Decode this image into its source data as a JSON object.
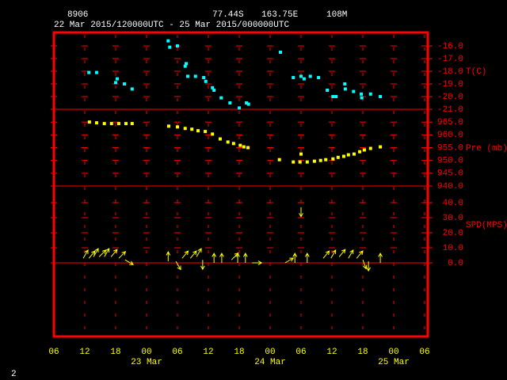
{
  "header": {
    "station": "8906",
    "latitude": "77.44S",
    "longitude": "163.75E",
    "elevation": "108M",
    "period": "22 Mar 2015/120000UTC - 25 Mar 2015/000000UTC"
  },
  "page_number": "2",
  "time_axis": {
    "xlim": [
      6,
      78
    ],
    "xticks": [
      {
        "value": 6,
        "label": "06"
      },
      12,
      18,
      {
        "value": 24,
        "label": "00"
      },
      {
        "value": 30,
        "label": "06"
      },
      {
        "value": 36,
        "label": "12"
      },
      {
        "value": 42,
        "label": "18"
      },
      {
        "value": 48,
        "label": "00"
      },
      {
        "value": 54,
        "label": "06"
      },
      {
        "value": 60,
        "label": "12"
      },
      {
        "value": 66,
        "label": "18"
      },
      {
        "value": 72,
        "label": "00"
      },
      {
        "value": 78,
        "label": "06"
      }
    ],
    "dates": [
      {
        "value": 24,
        "label": "23 Mar"
      },
      {
        "value": 48,
        "label": "24 Mar"
      },
      {
        "value": 72,
        "label": "25 Mar"
      }
    ]
  },
  "chart_data": [
    {
      "type": "scatter",
      "ylabel": "T(C)",
      "color": "#00ffff",
      "ylim": [
        -21,
        -15
      ],
      "yticks": [
        {
          "value": -16,
          "label": "-16.0"
        },
        {
          "value": -17,
          "label": "-17.0"
        },
        {
          "value": -18,
          "label": "-18.0"
        },
        {
          "value": -19,
          "label": "-19.0"
        },
        {
          "value": -20,
          "label": "-20.0"
        },
        {
          "value": -21,
          "label": "-21.0"
        }
      ],
      "x": [
        12.8,
        14.3,
        18,
        18.3,
        19.7,
        21.2,
        28.2,
        28.5,
        30,
        31.5,
        31.7,
        32,
        33.5,
        35.1,
        35.5,
        36.8,
        37.1,
        38.5,
        40.2,
        42,
        43.4,
        43.8,
        50,
        52.5,
        54,
        54.6,
        55.8,
        57.4,
        59.1,
        60.2,
        60.8,
        62.5,
        62.6,
        64.2,
        65.7,
        65.8,
        67.5,
        69.4
      ],
      "values": [
        -18.1,
        -18.1,
        -18.9,
        -18.6,
        -19.0,
        -19.4,
        -15.6,
        -16.1,
        -16.0,
        -17.6,
        -17.4,
        -18.4,
        -18.4,
        -18.5,
        -18.8,
        -19.3,
        -19.5,
        -20.1,
        -20.5,
        -20.9,
        -20.5,
        -20.6,
        -16.5,
        -18.5,
        -18.4,
        -18.6,
        -18.4,
        -18.5,
        -19.5,
        -20.0,
        -20.0,
        -19.0,
        -19.4,
        -19.6,
        -19.8,
        -20.1,
        -19.8,
        -20.0
      ]
    },
    {
      "type": "scatter",
      "ylabel": "Pre (mb)",
      "color": "#ffff00",
      "ylim": [
        940,
        970
      ],
      "yticks": [
        {
          "value": 965,
          "label": "965.0"
        },
        {
          "value": 960,
          "label": "960.0"
        },
        {
          "value": 955,
          "label": "955.0"
        },
        {
          "value": 950,
          "label": "950.0"
        },
        {
          "value": 945,
          "label": "945.0"
        },
        {
          "value": 940,
          "label": "940.0"
        }
      ],
      "x": [
        12.9,
        14.3,
        15.8,
        17.2,
        18.6,
        20.0,
        21.2,
        28.3,
        30,
        31.5,
        32.8,
        34,
        35.4,
        36.8,
        38.3,
        39.8,
        40.9,
        42.2,
        42.9,
        43.7,
        49.8,
        52.5,
        53.8,
        54,
        55.2,
        56.6,
        57.8,
        58.8,
        60.2,
        61.2,
        62.3,
        63.2,
        64.3,
        65.4,
        66.3,
        67.5,
        69.4
      ],
      "values": [
        965.0,
        964.7,
        964.4,
        964.4,
        964.4,
        964.4,
        964.4,
        963.4,
        963.1,
        962.5,
        962.2,
        961.6,
        961.3,
        960.3,
        958.4,
        957.2,
        956.6,
        955.9,
        955.3,
        955.0,
        950.3,
        949.4,
        949.4,
        952.5,
        949.4,
        949.7,
        950.0,
        950.3,
        950.6,
        951.2,
        951.6,
        952.2,
        952.5,
        953.4,
        954.1,
        954.7,
        955.3
      ]
    },
    {
      "type": "vector",
      "ylabel": "SPD(MPS)",
      "color": "#ffff00",
      "ylim": [
        0,
        50
      ],
      "yticks": [
        {
          "value": 40,
          "label": "40.0"
        },
        {
          "value": 30,
          "label": "30.0"
        },
        {
          "value": 20,
          "label": "20.0"
        },
        {
          "value": 10,
          "label": "10.0"
        },
        {
          "value": 0,
          "label": "0.0"
        }
      ],
      "x": [
        11.7,
        12.8,
        13.7,
        14.8,
        15.8,
        17.1,
        18.6,
        19.8,
        28.2,
        29.7,
        30.9,
        32.5,
        33.7,
        34.9,
        37.1,
        38.6,
        40.5,
        41.7,
        43.2,
        44.5,
        50.9,
        52.8,
        54,
        55.2,
        58.3,
        59.8,
        61.4,
        63.2,
        64.8,
        66,
        67.1,
        69.4
      ],
      "values": [
        3,
        3,
        4,
        4,
        4,
        4,
        3,
        2,
        1,
        1,
        3,
        3,
        4,
        2,
        0,
        0,
        2,
        0,
        0,
        0,
        0,
        0,
        37,
        0,
        3,
        3,
        4,
        3,
        3,
        2,
        1,
        0
      ],
      "direction": [
        30,
        40,
        30,
        45,
        30,
        40,
        45,
        120,
        0,
        150,
        40,
        40,
        30,
        180,
        0,
        0,
        45,
        0,
        0,
        90,
        60,
        0,
        180,
        0,
        40,
        30,
        40,
        30,
        40,
        160,
        180,
        0
      ]
    }
  ]
}
